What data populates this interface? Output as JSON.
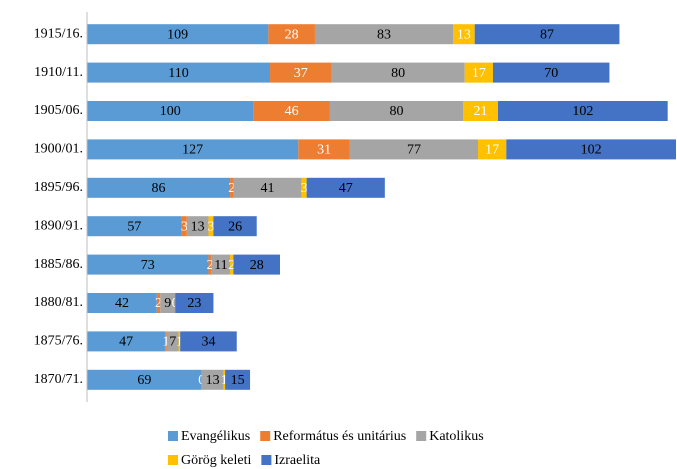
{
  "chart_data": {
    "type": "stacked-bar-horizontal",
    "categories": [
      "1915/16.",
      "1910/11.",
      "1905/06.",
      "1900/01.",
      "1895/96.",
      "1890/91.",
      "1885/86.",
      "1880/81.",
      "1875/76.",
      "1870/71."
    ],
    "series": [
      {
        "name": "Evangélikus",
        "color": "#5b9bd5",
        "values": [
          109,
          110,
          100,
          127,
          86,
          57,
          73,
          42,
          47,
          69
        ]
      },
      {
        "name": "Református és unitárius",
        "color": "#ed7d31",
        "values": [
          28,
          37,
          46,
          31,
          2,
          3,
          2,
          2,
          1,
          0
        ]
      },
      {
        "name": "Katolikus",
        "color": "#a5a5a5",
        "values": [
          83,
          80,
          80,
          77,
          41,
          13,
          11,
          9,
          7,
          13
        ]
      },
      {
        "name": "Görög keleti",
        "color": "#ffc000",
        "values": [
          13,
          17,
          21,
          17,
          3,
          3,
          2,
          0,
          1,
          1
        ]
      },
      {
        "name": "Izraelita",
        "color": "#4472c4",
        "values": [
          87,
          70,
          102,
          102,
          47,
          26,
          28,
          23,
          34,
          15
        ]
      }
    ],
    "xlim": [
      0,
      354
    ],
    "legend": "bottom"
  }
}
